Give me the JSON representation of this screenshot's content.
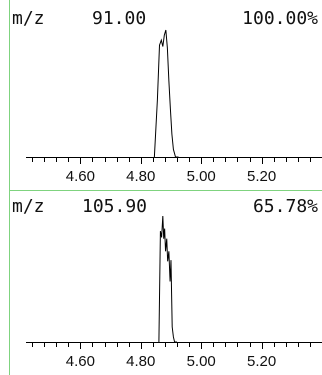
{
  "colors": {
    "frame": "#7fd37f",
    "axis": "#000000",
    "trace": "#000000",
    "text": "#111111"
  },
  "chart_data": [
    {
      "type": "line",
      "mz_label": "m/z",
      "mz_value": "91.00",
      "relative_abundance": "100.00%",
      "ylim": [
        0,
        100
      ],
      "xlim": [
        4.42,
        5.4
      ],
      "x_ticks": [
        4.6,
        4.8,
        5.0,
        5.2
      ],
      "x_tick_labels": [
        "4.60",
        "4.80",
        "5.00",
        "5.20"
      ],
      "series": [
        {
          "x": [
            4.845,
            4.855,
            4.862,
            4.868,
            4.873,
            4.878,
            4.883,
            4.888,
            4.893,
            4.898,
            4.903,
            4.908,
            4.915,
            4.925
          ],
          "y": [
            0,
            45,
            88,
            92,
            87,
            96,
            100,
            86,
            60,
            38,
            18,
            6,
            0,
            0
          ]
        }
      ]
    },
    {
      "type": "line",
      "mz_label": "m/z",
      "mz_value": "105.90",
      "relative_abundance": "65.78%",
      "ylim": [
        0,
        100
      ],
      "xlim": [
        4.42,
        5.4
      ],
      "x_ticks": [
        4.6,
        4.8,
        5.0,
        5.2
      ],
      "x_tick_labels": [
        "4.60",
        "4.80",
        "5.00",
        "5.20"
      ],
      "series": [
        {
          "x": [
            4.86,
            4.865,
            4.869,
            4.873,
            4.876,
            4.879,
            4.882,
            4.886,
            4.889,
            4.893,
            4.897,
            4.9,
            4.904,
            4.908,
            4.912,
            4.92
          ],
          "y": [
            0,
            88,
            83,
            100,
            82,
            90,
            72,
            82,
            64,
            72,
            48,
            65,
            12,
            4,
            0,
            0
          ]
        }
      ]
    }
  ]
}
